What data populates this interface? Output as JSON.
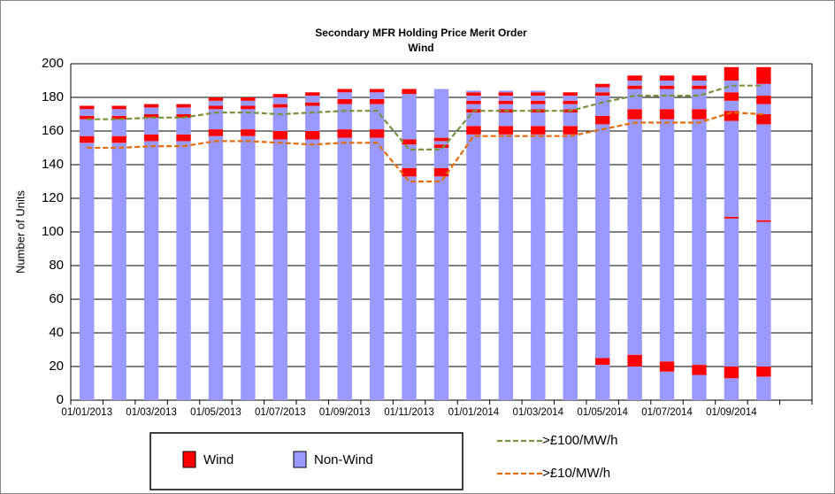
{
  "chart_data": {
    "type": "bar",
    "title": "Secondary  MFR Holding Price Merit Order",
    "subtitle": "Wind",
    "ylabel": "Number of Units",
    "categories": [
      "01/01/2013",
      null,
      "01/03/2013",
      null,
      "01/05/2013",
      null,
      "01/07/2013",
      null,
      "01/09/2013",
      null,
      "01/11/2013",
      null,
      "01/01/2014",
      null,
      "01/03/2014",
      null,
      "01/05/2014",
      null,
      "01/07/2014",
      null,
      "01/09/2014",
      null,
      null
    ],
    "series": [
      {
        "name": "Non-Wind",
        "color": "#9999ff",
        "values": [
          153,
          153,
          154,
          154,
          157,
          157,
          155,
          155,
          156,
          156,
          133,
          133,
          158,
          158,
          158,
          158,
          21,
          20,
          17,
          15,
          13,
          14,
          null
        ]
      },
      {
        "name": "Wind",
        "color": "#ff0000",
        "values": [
          4,
          4,
          4,
          4,
          4,
          4,
          5,
          5,
          5,
          5,
          5,
          5,
          5,
          5,
          5,
          5,
          4,
          7,
          6,
          6,
          7,
          6,
          null
        ]
      },
      {
        "name": "Non-Wind",
        "color": "#9999ff",
        "values": [
          10,
          10,
          10,
          10,
          12,
          12,
          14,
          15,
          15,
          15,
          14,
          12,
          8,
          8,
          8,
          8,
          139,
          140,
          144,
          146,
          88,
          86,
          null
        ]
      },
      {
        "name": "Wind",
        "color": "#ff0000",
        "values": [
          2,
          2,
          2,
          2,
          2,
          2,
          2,
          2,
          3,
          3,
          3,
          2,
          2,
          2,
          2,
          2,
          5,
          6,
          6,
          6,
          1,
          1,
          null
        ]
      },
      {
        "name": "Non-Wind",
        "color": "#9999ff",
        "values": [
          4,
          4,
          4,
          4,
          3,
          3,
          4,
          4,
          4,
          4,
          27,
          2,
          3,
          3,
          3,
          3,
          12,
          12,
          12,
          12,
          57,
          57,
          null
        ]
      },
      {
        "name": "Wind",
        "color": "#ff0000",
        "values": [
          2,
          2,
          2,
          2,
          2,
          2,
          2,
          2,
          2,
          2,
          3,
          2,
          2,
          2,
          2,
          2,
          2,
          2,
          2,
          2,
          6,
          6,
          null
        ]
      },
      {
        "name": "Non-Wind",
        "color": "#9999ff",
        "values": [
          0,
          0,
          0,
          0,
          0,
          0,
          0,
          0,
          0,
          0,
          0,
          29,
          3,
          3,
          3,
          3,
          3,
          3,
          3,
          3,
          6,
          6,
          null
        ]
      },
      {
        "name": "Wind",
        "color": "#ff0000",
        "values": [
          0,
          0,
          0,
          0,
          0,
          0,
          0,
          0,
          0,
          0,
          0,
          0,
          2,
          2,
          2,
          2,
          2,
          3,
          3,
          3,
          5,
          5,
          null
        ]
      },
      {
        "name": "Non-Wind",
        "color": "#9999ff",
        "values": [
          0,
          0,
          0,
          0,
          0,
          0,
          0,
          0,
          0,
          0,
          0,
          0,
          1,
          1,
          1,
          0,
          0,
          0,
          0,
          0,
          7,
          7,
          null
        ]
      },
      {
        "name": "Wind",
        "color": "#ff0000",
        "values": [
          0,
          0,
          0,
          0,
          0,
          0,
          0,
          0,
          0,
          0,
          0,
          0,
          0,
          0,
          0,
          0,
          0,
          0,
          0,
          0,
          8,
          10,
          null
        ]
      },
      {
        "name": ">£100/MW/h",
        "color": "#77933c",
        "type": "line",
        "values": [
          167,
          167,
          168,
          168,
          171,
          171,
          170,
          171,
          172,
          172,
          149,
          149,
          172,
          172,
          172,
          172,
          177,
          181,
          181,
          181,
          187,
          187,
          null
        ]
      },
      {
        "name": ">£10/MW/h",
        "color": "#e46c0a",
        "type": "line",
        "values": [
          150,
          150,
          151,
          151,
          154,
          154,
          153,
          152,
          153,
          153,
          130,
          130,
          157,
          157,
          157,
          157,
          161,
          165,
          165,
          165,
          171,
          170,
          null
        ]
      }
    ],
    "ylim": [
      0,
      200
    ],
    "yticks": [
      0,
      20,
      40,
      60,
      80,
      100,
      120,
      140,
      160,
      180,
      200
    ],
    "grid": true
  }
}
